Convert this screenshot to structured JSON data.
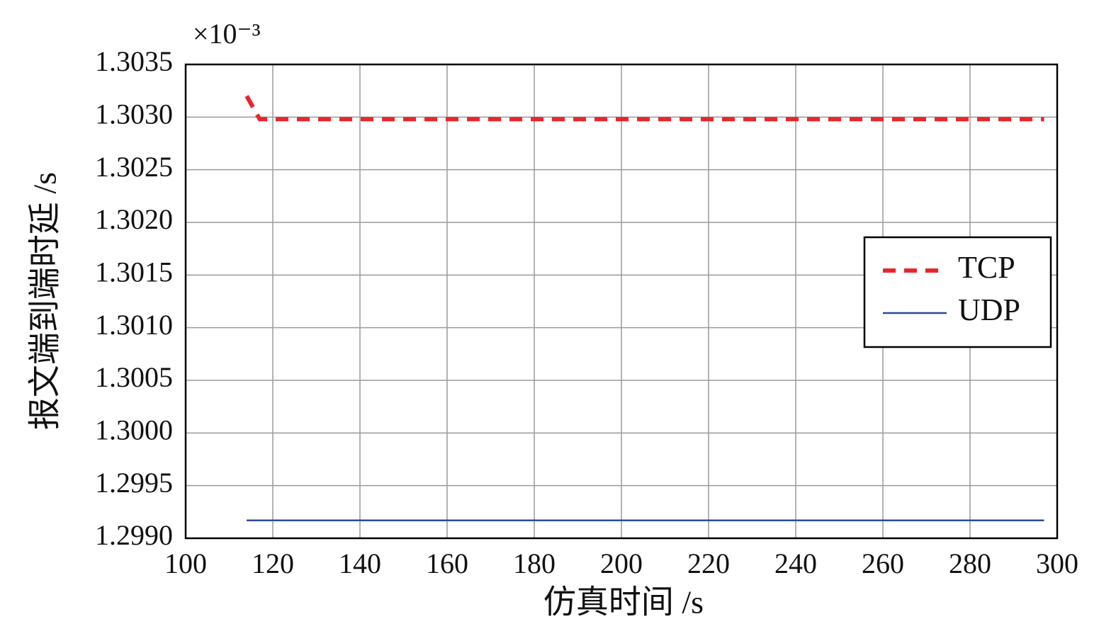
{
  "chart_data": {
    "type": "line",
    "y_multiplier": "×10⁻³",
    "xlabel": "仿真时间 /s",
    "ylabel": "报文端到端时延 /s",
    "xlim": [
      100,
      300
    ],
    "xticks": [
      100,
      120,
      140,
      160,
      180,
      200,
      220,
      240,
      260,
      280,
      300
    ],
    "ylim": [
      1.299,
      1.3035
    ],
    "yticks": [
      {
        "value": 1.299,
        "label": "1.2990"
      },
      1.2995,
      {
        "value": 1.3,
        "label": "1.3000"
      },
      1.3005,
      {
        "value": 1.301,
        "label": "1.3010"
      },
      1.3015,
      {
        "value": 1.302,
        "label": "1.3020"
      },
      1.3025,
      {
        "value": 1.303,
        "label": "1.3030"
      },
      1.3035
    ],
    "grid": true,
    "legend": "right",
    "series": [
      {
        "name": "TCP",
        "color": "#e8262c",
        "dash": true,
        "x": [
          114,
          117,
          297
        ],
        "values": [
          1.3032,
          1.30298,
          1.30298
        ]
      },
      {
        "name": "UDP",
        "color": "#2b4a9b",
        "dash": false,
        "x": [
          114,
          297
        ],
        "values": [
          1.29917,
          1.29917
        ]
      }
    ]
  }
}
